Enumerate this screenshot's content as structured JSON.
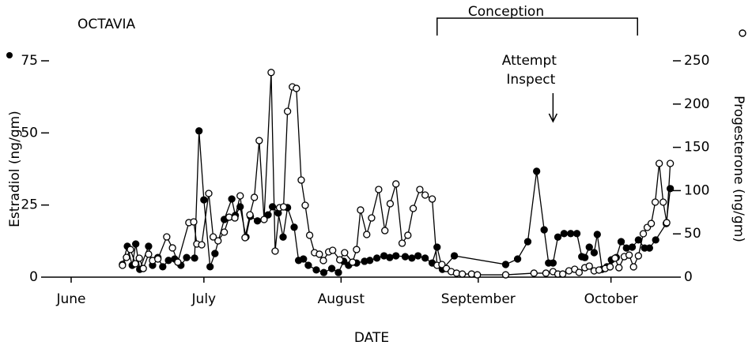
{
  "chart_data": {
    "type": "line",
    "title": "OCTAVIA",
    "x_label": "DATE",
    "y_label": "Estradiol (ng/gm)",
    "y2_label": "Progesterone (ng/gm)",
    "xlim": [
      -5,
      136
    ],
    "xticks": [
      {
        "value": 0,
        "label": "June"
      },
      {
        "value": 30,
        "label": "July"
      },
      {
        "value": 61,
        "label": "August"
      },
      {
        "value": 92,
        "label": "September"
      },
      {
        "value": 122,
        "label": "October"
      }
    ],
    "ylim": [
      0,
      75
    ],
    "yticks": [
      0,
      25,
      50,
      75
    ],
    "y2lim": [
      0,
      250
    ],
    "y2ticks": [
      0,
      50,
      100,
      150,
      200,
      250
    ],
    "annotations": [
      {
        "text": "Conception",
        "x": [
          82.7,
          128.0
        ]
      },
      {
        "text": [
          "Attempt",
          "Inspect"
        ],
        "x": 108.9
      }
    ],
    "series": [
      {
        "color": "#000000",
        "marker": "filled",
        "x": [
          11.6,
          12.7,
          13.8,
          14.6,
          15.5,
          17.5,
          18.4,
          19.6,
          20.7,
          22.0,
          23.4,
          24.8,
          26.1,
          27.9,
          28.9,
          30.0,
          31.4,
          32.5,
          34.6,
          36.3,
          37.1,
          38.2,
          39.5,
          40.5,
          42.1,
          44.5,
          45.5,
          46.8,
          47.9,
          48.9,
          50.4,
          51.4,
          52.5,
          53.6,
          55.4,
          57.1,
          58.9,
          60.4,
          61.6,
          62.7,
          64.5,
          66.3,
          67.5,
          69.1,
          70.7,
          72.0,
          73.4,
          75.5,
          77.0,
          78.4,
          80.0,
          81.6,
          82.7,
          83.9,
          86.6,
          98.2,
          100.9,
          103.2,
          105.2,
          106.9,
          107.9,
          108.9,
          110.0,
          111.4,
          112.9,
          114.3,
          115.4,
          116.1,
          117.1,
          118.2,
          118.9,
          120.0,
          121.1,
          122.1,
          123.2,
          124.3,
          125.5,
          126.8,
          128.2,
          129.6,
          130.7,
          132.1,
          134.5,
          135.4
        ],
        "values": [
          4.4,
          10.7,
          4.1,
          11.5,
          2.7,
          10.7,
          4.1,
          6.8,
          3.6,
          5.8,
          6.3,
          4.1,
          6.8,
          6.6,
          50.7,
          26.8,
          3.6,
          8.2,
          20.0,
          27.1,
          21.4,
          24.4,
          13.9,
          21.1,
          19.5,
          21.6,
          24.4,
          22.2,
          13.9,
          24.1,
          17.3,
          5.8,
          6.3,
          4.1,
          2.5,
          1.6,
          3.0,
          1.6,
          5.5,
          4.1,
          4.9,
          5.5,
          5.8,
          6.6,
          7.4,
          6.8,
          7.4,
          7.1,
          6.6,
          7.4,
          6.6,
          4.9,
          10.4,
          2.7,
          7.4,
          4.4,
          6.3,
          12.3,
          36.7,
          16.4,
          4.9,
          4.9,
          13.9,
          15.1,
          15.1,
          15.1,
          7.1,
          6.8,
          10.4,
          8.5,
          14.8,
          2.7,
          3.6,
          6.0,
          6.8,
          12.3,
          10.1,
          10.4,
          12.9,
          10.1,
          10.1,
          12.9,
          18.6,
          30.7
        ]
      },
      {
        "color": "#000000",
        "marker": "open",
        "axis": "y2",
        "x": [
          11.6,
          12.5,
          13.4,
          14.5,
          15.4,
          16.3,
          17.5,
          18.4,
          19.6,
          21.6,
          22.9,
          24.1,
          26.6,
          27.7,
          28.4,
          29.5,
          31.1,
          32.1,
          33.2,
          34.6,
          35.7,
          37.0,
          38.2,
          39.3,
          40.4,
          41.4,
          42.5,
          43.6,
          45.2,
          46.1,
          47.1,
          48.0,
          48.9,
          50.0,
          50.9,
          52.0,
          52.9,
          53.9,
          55.0,
          56.1,
          57.0,
          58.2,
          59.1,
          60.7,
          61.8,
          63.6,
          64.5,
          65.4,
          66.8,
          67.9,
          69.5,
          70.9,
          72.1,
          73.4,
          74.8,
          76.1,
          77.3,
          78.8,
          80.0,
          81.6,
          82.7,
          83.8,
          84.8,
          85.9,
          87.1,
          88.4,
          90.5,
          91.8,
          98.2,
          104.6,
          107.3,
          108.9,
          110.0,
          111.1,
          112.5,
          113.8,
          114.8,
          116.1,
          117.1,
          118.2,
          119.3,
          120.7,
          121.8,
          122.9,
          123.8,
          125.0,
          126.1,
          127.1,
          128.2,
          129.3,
          130.2,
          131.1,
          132.0,
          132.9,
          133.8,
          134.6,
          135.4
        ],
        "values": [
          13.7,
          22.8,
          31.9,
          15.5,
          21.9,
          10.0,
          26.5,
          19.2,
          21.0,
          46.5,
          33.8,
          17.3,
          63.0,
          63.9,
          38.3,
          37.4,
          96.7,
          46.5,
          42.0,
          52.0,
          69.3,
          68.4,
          94.0,
          45.6,
          72.1,
          92.2,
          157.8,
          66.6,
          236.5,
          30.1,
          80.3,
          81.2,
          191.6,
          219.9,
          218.1,
          112.2,
          83.0,
          48.4,
          28.3,
          26.5,
          19.2,
          29.2,
          31.0,
          20.1,
          28.3,
          17.3,
          31.9,
          77.6,
          49.3,
          68.4,
          101.3,
          53.8,
          84.9,
          107.7,
          39.2,
          48.4,
          79.4,
          101.3,
          94.9,
          90.3,
          13.7,
          14.6,
          10.0,
          6.4,
          4.6,
          3.6,
          3.6,
          2.7,
          2.7,
          4.6,
          4.6,
          6.4,
          3.6,
          3.6,
          7.3,
          9.1,
          5.5,
          10.9,
          12.8,
          7.3,
          8.2,
          10.0,
          11.9,
          21.9,
          10.9,
          23.7,
          25.5,
          11.9,
          24.6,
          50.2,
          57.5,
          62.0,
          86.7,
          131.4,
          86.7,
          63.0,
          131.4
        ]
      }
    ]
  }
}
